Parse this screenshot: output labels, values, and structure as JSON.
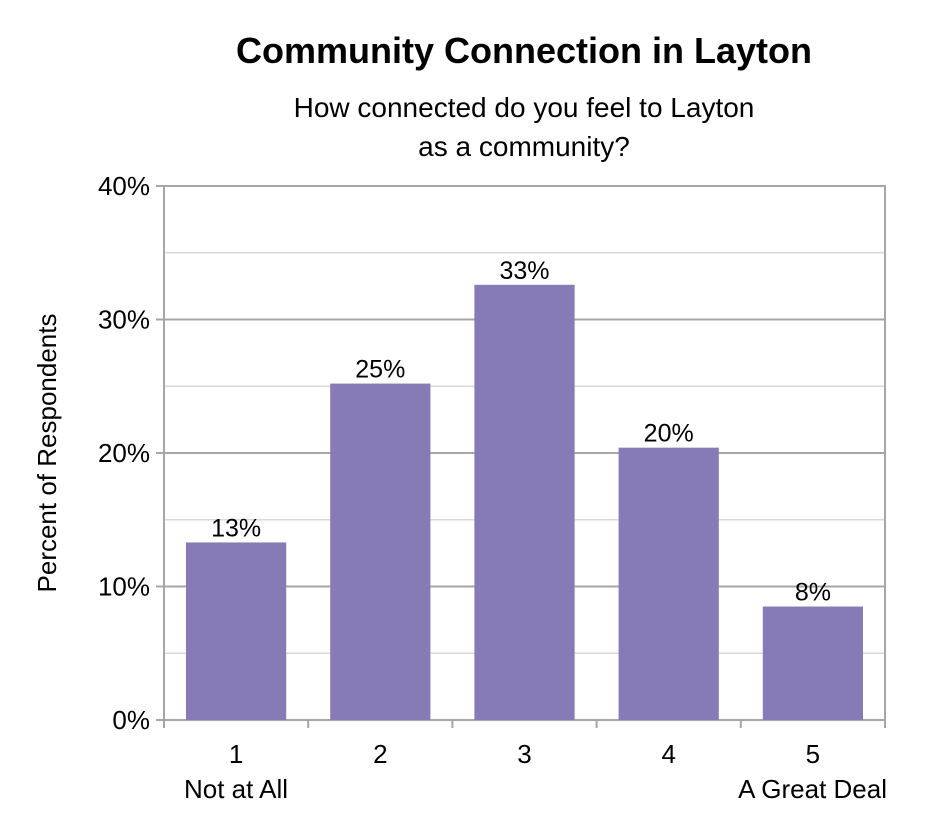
{
  "chart_data": {
    "type": "bar",
    "title": "Community Connection in Layton",
    "subtitle_lines": [
      "How connected do you feel to Layton",
      "as a community?"
    ],
    "ylabel": "Percent of Respondents",
    "xlabel": "",
    "ylim": [
      0,
      40
    ],
    "yticks": [
      "0%",
      "10%",
      "20%",
      "30%",
      "40%"
    ],
    "ytick_values": [
      0,
      10,
      20,
      30,
      40
    ],
    "categories": [
      "1",
      "2",
      "3",
      "4",
      "5"
    ],
    "category_sublabels": [
      "Not at All",
      "",
      "",
      "",
      "A Great Deal"
    ],
    "values": [
      13.3,
      25.2,
      32.6,
      20.4,
      8.5
    ],
    "data_labels": [
      "13%",
      "25%",
      "33%",
      "20%",
      "8%"
    ],
    "bar_color": "#877bb5",
    "grid": true,
    "legend": "none"
  }
}
